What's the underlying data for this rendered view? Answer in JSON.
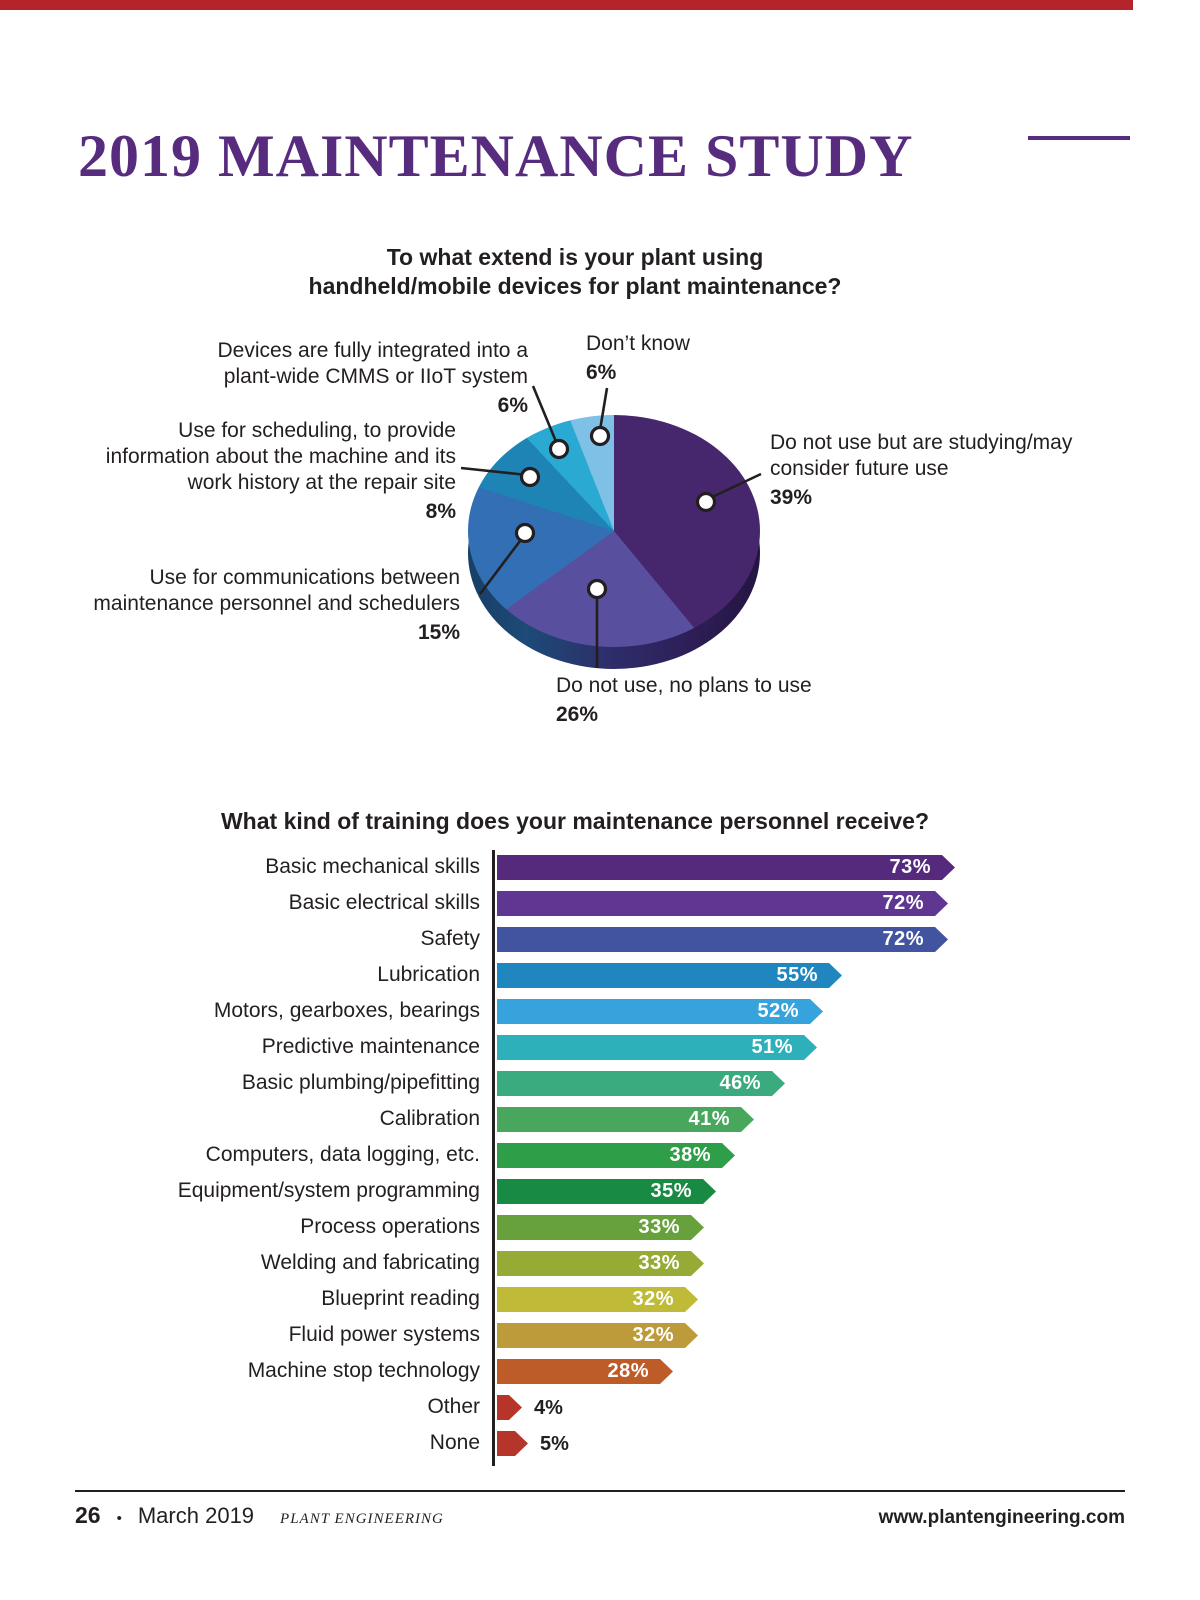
{
  "page": {
    "title": "2019 MAINTENANCE STUDY",
    "accent_color": "#572c7f",
    "top_bar_color": "#b5232b",
    "footer": {
      "page_number": "26",
      "bullet": "•",
      "date": "March 2019",
      "magazine": "PLANT ENGINEERING",
      "website": "www.plantengineering.com"
    }
  },
  "chart_data": [
    {
      "type": "pie",
      "title": "To what extend is your plant using handheld/mobile devices for plant maintenance?",
      "start_angle_deg": 0,
      "direction": "clockwise",
      "style": "3d",
      "slices": [
        {
          "label": "Do not use but are studying/may consider future use",
          "value": 39,
          "pct": "39%",
          "color": "#46276d"
        },
        {
          "label": "Do not use, no plans to use",
          "value": 26,
          "pct": "26%",
          "color": "#584f9f"
        },
        {
          "label": "Use for communications between maintenance personnel and schedulers",
          "value": 15,
          "pct": "15%",
          "color": "#336fb4"
        },
        {
          "label": "Use for scheduling, to provide information about the machine and its work history at the repair site",
          "value": 8,
          "pct": "8%",
          "color": "#1d84b5"
        },
        {
          "label": "Devices are fully integrated into a plant-wide CMMS or IIoT system",
          "value": 6,
          "pct": "6%",
          "color": "#2aa9d2"
        },
        {
          "label": "Don’t know",
          "value": 6,
          "pct": "6%",
          "color": "#7fc1e6"
        }
      ]
    },
    {
      "type": "bar",
      "orientation": "horizontal",
      "title": "What kind of training does your maintenance personnel receive?",
      "value_suffix": "%",
      "xlim": [
        0,
        80
      ],
      "grid": false,
      "legend": "none",
      "categories": [
        "Basic mechanical skills",
        "Basic electrical skills",
        "Safety",
        "Lubrication",
        "Motors, gearboxes, bearings",
        "Predictive maintenance",
        "Basic plumbing/pipefitting",
        "Calibration",
        "Computers, data logging, etc.",
        "Equipment/system programming",
        "Process operations",
        "Welding and fabricating",
        "Blueprint reading",
        "Fluid power systems",
        "Machine stop technology",
        "Other",
        "None"
      ],
      "values": [
        73,
        72,
        72,
        55,
        52,
        51,
        46,
        41,
        38,
        35,
        33,
        33,
        32,
        32,
        28,
        4,
        5
      ],
      "colors": [
        "#552a7d",
        "#5f3793",
        "#42539f",
        "#1f86c0",
        "#36a3dc",
        "#2eb0ba",
        "#3aab7e",
        "#48a75c",
        "#2f9e48",
        "#198a43",
        "#66a13b",
        "#96ab35",
        "#bfba38",
        "#bd9b3a",
        "#bd5c28",
        "#b5352a",
        "#b5352a"
      ]
    }
  ]
}
